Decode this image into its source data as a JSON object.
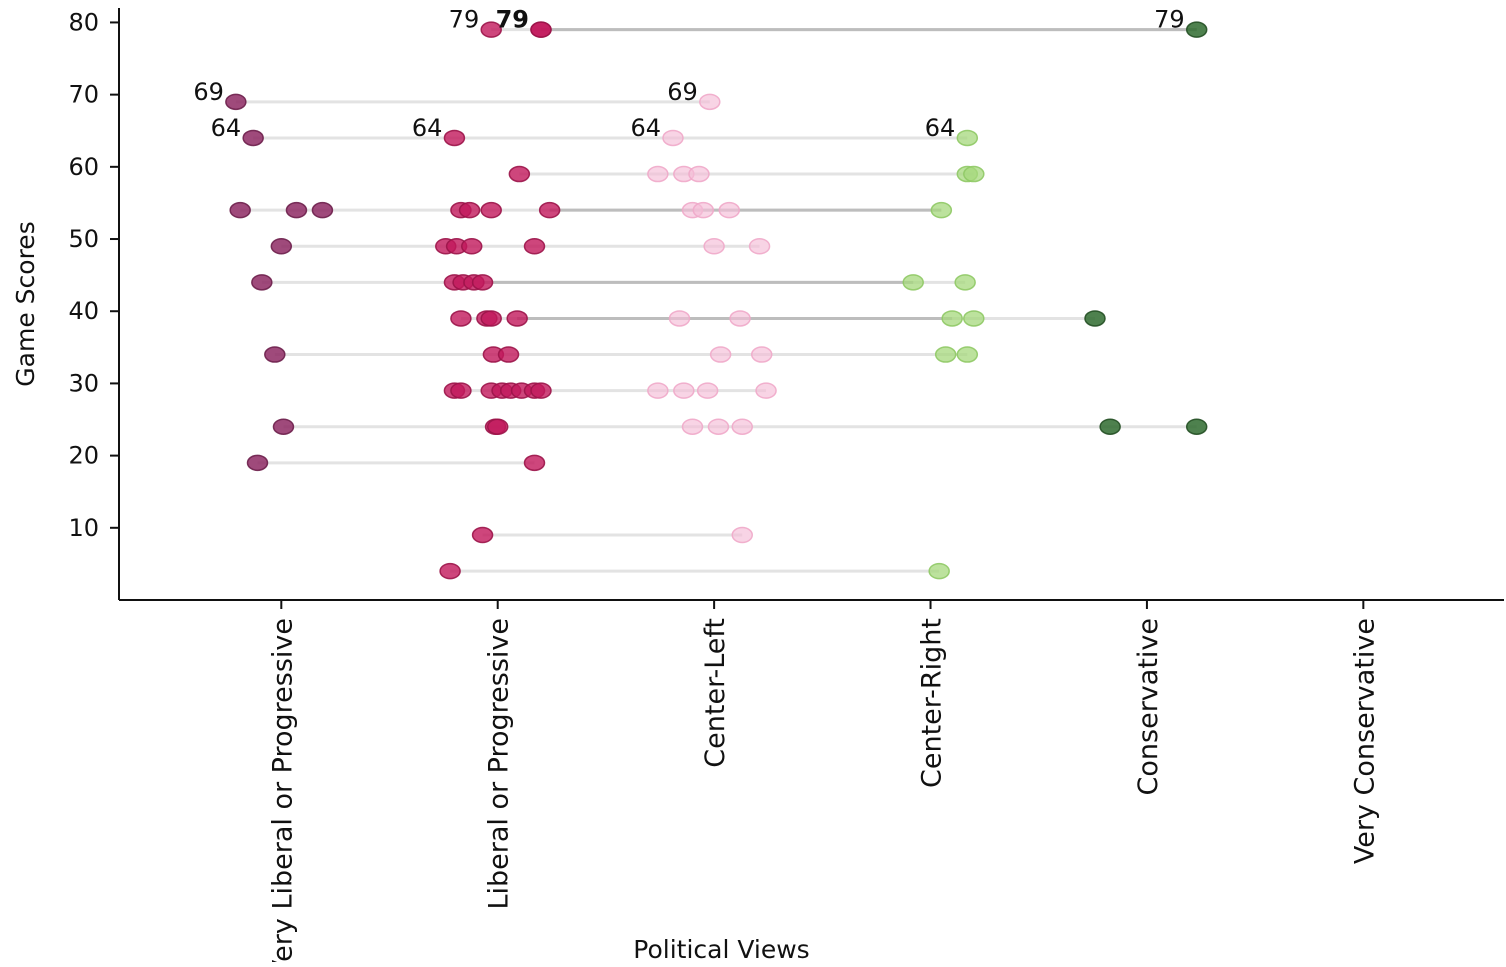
{
  "chart_data": {
    "type": "scatter",
    "xlabel": "Political Views",
    "ylabel": "Game Scores",
    "categories": [
      "Very Liberal or Progressive",
      "Liberal or Progressive",
      "Center-Left",
      "Center-Right",
      "Conservative",
      "Very Conservative"
    ],
    "yticks": [
      10,
      20,
      30,
      40,
      50,
      60,
      70,
      80
    ],
    "ylim": [
      0,
      82
    ],
    "xlim": [
      -0.75,
      5.65
    ],
    "grid": false,
    "colors": {
      "very_liberal": "#8e2a64",
      "liberal": "#c2185b",
      "center_left": "#f4bdd7",
      "center_right": "#a6d87c",
      "conservative": "#2f6b2f",
      "connector_light": "#e3e3e3",
      "connector_dark": "#bdbdbd"
    },
    "rows": [
      {
        "y": 79,
        "points": [
          {
            "x": 0.97,
            "g": "liberal"
          },
          {
            "x": 1.2,
            "g": "liberal"
          },
          {
            "x": 1.2,
            "g": "liberal"
          },
          {
            "x": 4.23,
            "g": "conservative"
          }
        ],
        "labels": [
          {
            "x": 0.97,
            "text": "79",
            "bold": false
          },
          {
            "x": 1.2,
            "text": "79",
            "bold": true
          },
          {
            "x": 4.23,
            "text": "79",
            "bold": false
          }
        ]
      },
      {
        "y": 69,
        "points": [
          {
            "x": -0.21,
            "g": "very_liberal"
          },
          {
            "x": 1.98,
            "g": "center_left"
          }
        ],
        "labels": [
          {
            "x": -0.21,
            "text": "69",
            "bold": false
          },
          {
            "x": 1.98,
            "text": "69",
            "bold": false
          }
        ]
      },
      {
        "y": 64,
        "points": [
          {
            "x": -0.13,
            "g": "very_liberal"
          },
          {
            "x": 0.8,
            "g": "liberal"
          },
          {
            "x": 1.81,
            "g": "center_left"
          },
          {
            "x": 3.17,
            "g": "center_right"
          }
        ],
        "labels": [
          {
            "x": -0.13,
            "text": "64",
            "bold": false
          },
          {
            "x": 0.8,
            "text": "64",
            "bold": false
          },
          {
            "x": 1.81,
            "text": "64",
            "bold": false
          },
          {
            "x": 3.17,
            "text": "64",
            "bold": false
          }
        ]
      },
      {
        "y": 59,
        "points": [
          {
            "x": 1.1,
            "g": "liberal"
          },
          {
            "x": 1.74,
            "g": "center_left"
          },
          {
            "x": 1.86,
            "g": "center_left"
          },
          {
            "x": 1.93,
            "g": "center_left"
          },
          {
            "x": 3.17,
            "g": "center_right"
          },
          {
            "x": 3.2,
            "g": "center_right"
          }
        ]
      },
      {
        "y": 54,
        "points": [
          {
            "x": -0.19,
            "g": "very_liberal"
          },
          {
            "x": 0.07,
            "g": "very_liberal"
          },
          {
            "x": 0.19,
            "g": "very_liberal"
          },
          {
            "x": 0.83,
            "g": "liberal"
          },
          {
            "x": 0.87,
            "g": "liberal"
          },
          {
            "x": 0.97,
            "g": "liberal"
          },
          {
            "x": 1.24,
            "g": "liberal"
          },
          {
            "x": 1.9,
            "g": "center_left"
          },
          {
            "x": 1.95,
            "g": "center_left"
          },
          {
            "x": 2.07,
            "g": "center_left"
          },
          {
            "x": 3.05,
            "g": "center_right"
          }
        ]
      },
      {
        "y": 49,
        "points": [
          {
            "x": 0.0,
            "g": "very_liberal"
          },
          {
            "x": 0.76,
            "g": "liberal"
          },
          {
            "x": 0.81,
            "g": "liberal"
          },
          {
            "x": 0.88,
            "g": "liberal"
          },
          {
            "x": 1.17,
            "g": "liberal"
          },
          {
            "x": 2.0,
            "g": "center_left"
          },
          {
            "x": 2.21,
            "g": "center_left"
          }
        ]
      },
      {
        "y": 44,
        "points": [
          {
            "x": -0.09,
            "g": "very_liberal"
          },
          {
            "x": 0.8,
            "g": "liberal"
          },
          {
            "x": 0.84,
            "g": "liberal"
          },
          {
            "x": 0.89,
            "g": "liberal"
          },
          {
            "x": 0.93,
            "g": "liberal"
          },
          {
            "x": 2.92,
            "g": "center_right"
          },
          {
            "x": 3.16,
            "g": "center_right"
          }
        ]
      },
      {
        "y": 39,
        "points": [
          {
            "x": 0.83,
            "g": "liberal"
          },
          {
            "x": 0.95,
            "g": "liberal"
          },
          {
            "x": 0.97,
            "g": "liberal"
          },
          {
            "x": 1.09,
            "g": "liberal"
          },
          {
            "x": 1.84,
            "g": "center_left"
          },
          {
            "x": 2.12,
            "g": "center_left"
          },
          {
            "x": 3.1,
            "g": "center_right"
          },
          {
            "x": 3.2,
            "g": "center_right"
          },
          {
            "x": 3.76,
            "g": "conservative"
          }
        ]
      },
      {
        "y": 34,
        "points": [
          {
            "x": -0.03,
            "g": "very_liberal"
          },
          {
            "x": 0.98,
            "g": "liberal"
          },
          {
            "x": 1.05,
            "g": "liberal"
          },
          {
            "x": 2.03,
            "g": "center_left"
          },
          {
            "x": 2.22,
            "g": "center_left"
          },
          {
            "x": 3.07,
            "g": "center_right"
          },
          {
            "x": 3.17,
            "g": "center_right"
          }
        ]
      },
      {
        "y": 29,
        "points": [
          {
            "x": 0.8,
            "g": "liberal"
          },
          {
            "x": 0.83,
            "g": "liberal"
          },
          {
            "x": 0.97,
            "g": "liberal"
          },
          {
            "x": 1.02,
            "g": "liberal"
          },
          {
            "x": 1.06,
            "g": "liberal"
          },
          {
            "x": 1.11,
            "g": "liberal"
          },
          {
            "x": 1.17,
            "g": "liberal"
          },
          {
            "x": 1.2,
            "g": "liberal"
          },
          {
            "x": 1.74,
            "g": "center_left"
          },
          {
            "x": 1.86,
            "g": "center_left"
          },
          {
            "x": 1.97,
            "g": "center_left"
          },
          {
            "x": 2.24,
            "g": "center_left"
          }
        ]
      },
      {
        "y": 24,
        "points": [
          {
            "x": 0.01,
            "g": "very_liberal"
          },
          {
            "x": 0.99,
            "g": "liberal"
          },
          {
            "x": 1.0,
            "g": "liberal"
          },
          {
            "x": 1.9,
            "g": "center_left"
          },
          {
            "x": 2.02,
            "g": "center_left"
          },
          {
            "x": 2.13,
            "g": "center_left"
          },
          {
            "x": 3.83,
            "g": "conservative"
          },
          {
            "x": 4.23,
            "g": "conservative"
          }
        ]
      },
      {
        "y": 19,
        "points": [
          {
            "x": -0.11,
            "g": "very_liberal"
          },
          {
            "x": 1.17,
            "g": "liberal"
          }
        ]
      },
      {
        "y": 9,
        "points": [
          {
            "x": 0.93,
            "g": "liberal"
          },
          {
            "x": 2.13,
            "g": "center_left"
          }
        ]
      },
      {
        "y": 4,
        "points": [
          {
            "x": 0.78,
            "g": "liberal"
          },
          {
            "x": 3.04,
            "g": "center_right"
          }
        ]
      }
    ]
  }
}
